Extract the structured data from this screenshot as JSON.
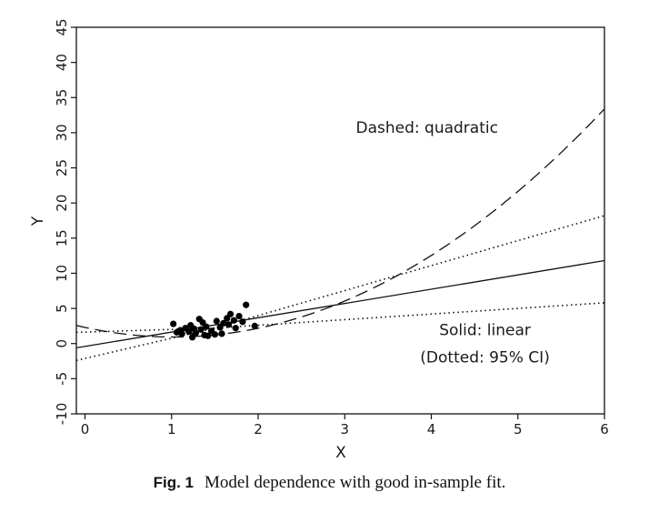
{
  "chart_data": {
    "type": "scatter",
    "xlabel": "X",
    "ylabel": "Y",
    "xlim": [
      -0.1,
      6
    ],
    "ylim": [
      -10,
      45
    ],
    "xticks": [
      0,
      1,
      2,
      3,
      4,
      5,
      6
    ],
    "yticks": [
      -10,
      -5,
      0,
      5,
      10,
      15,
      20,
      25,
      30,
      35,
      40,
      45
    ],
    "grid": false,
    "points": [
      {
        "x": 1.02,
        "y": 2.8
      },
      {
        "x": 1.06,
        "y": 1.6
      },
      {
        "x": 1.1,
        "y": 1.9
      },
      {
        "x": 1.12,
        "y": 1.4
      },
      {
        "x": 1.16,
        "y": 2.2
      },
      {
        "x": 1.2,
        "y": 1.7
      },
      {
        "x": 1.22,
        "y": 2.6
      },
      {
        "x": 1.24,
        "y": 0.9
      },
      {
        "x": 1.26,
        "y": 2.1
      },
      {
        "x": 1.28,
        "y": 1.5
      },
      {
        "x": 1.32,
        "y": 3.5
      },
      {
        "x": 1.34,
        "y": 2.0
      },
      {
        "x": 1.36,
        "y": 3.0
      },
      {
        "x": 1.38,
        "y": 1.2
      },
      {
        "x": 1.4,
        "y": 2.4
      },
      {
        "x": 1.42,
        "y": 1.1
      },
      {
        "x": 1.46,
        "y": 1.8
      },
      {
        "x": 1.5,
        "y": 1.3
      },
      {
        "x": 1.52,
        "y": 3.2
      },
      {
        "x": 1.56,
        "y": 2.3
      },
      {
        "x": 1.58,
        "y": 1.4
      },
      {
        "x": 1.6,
        "y": 2.9
      },
      {
        "x": 1.64,
        "y": 3.6
      },
      {
        "x": 1.66,
        "y": 2.7
      },
      {
        "x": 1.68,
        "y": 4.2
      },
      {
        "x": 1.72,
        "y": 3.3
      },
      {
        "x": 1.74,
        "y": 2.2
      },
      {
        "x": 1.78,
        "y": 3.9
      },
      {
        "x": 1.82,
        "y": 3.1
      },
      {
        "x": 1.86,
        "y": 5.5
      },
      {
        "x": 1.96,
        "y": 2.5
      }
    ],
    "lines": [
      {
        "name": "linear",
        "style": "solid",
        "x": [
          -0.1,
          6
        ],
        "y": [
          -0.6,
          11.8
        ]
      },
      {
        "name": "ci-upper",
        "style": "dotted",
        "x": [
          -0.1,
          1.5,
          6
        ],
        "y": [
          -2.4,
          2.2,
          18.2
        ]
      },
      {
        "name": "ci-lower",
        "style": "dotted",
        "x": [
          -0.1,
          1.5,
          6
        ],
        "y": [
          1.6,
          2.2,
          5.8
        ]
      },
      {
        "name": "quadratic",
        "style": "dashed",
        "quad": {
          "a": 1.31,
          "b": -2.68,
          "c": 2.3
        },
        "xrange": [
          -0.1,
          6
        ]
      }
    ],
    "annotations": [
      {
        "text": "Dashed: quadratic",
        "x": 3.95,
        "y": 30
      },
      {
        "text": "Solid: linear",
        "x": 4.62,
        "y": 1.2
      },
      {
        "text": "(Dotted: 95% CI)",
        "x": 4.62,
        "y": -2.7
      }
    ]
  },
  "caption": {
    "label": "Fig. 1",
    "text": "Model dependence with good in-sample fit."
  }
}
